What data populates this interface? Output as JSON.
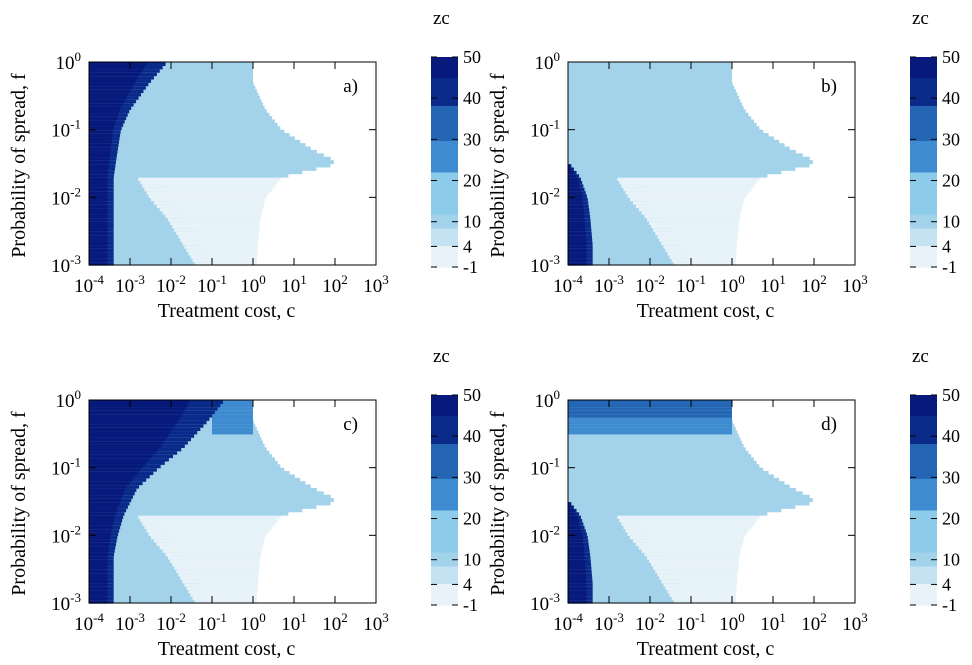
{
  "colors": {
    "very_light": "#e8f3f9",
    "light": "#c4e2f1",
    "medium_light": "#a2d3ea",
    "sky": "#8ccbe9",
    "mid_blue": "#3f8bd0",
    "blue": "#2566b4",
    "dark_blue": "#0a2a8a",
    "navy": "#07197a"
  },
  "chart_data": [
    {
      "type": "heatmap",
      "panel_label": "a)",
      "xlabel": "Treatment cost, c",
      "ylabel": "Probability of spread, f",
      "x_scale": "log",
      "y_scale": "log",
      "xlim": [
        0.0001,
        1000
      ],
      "ylim": [
        0.001,
        1
      ],
      "x_tick_values": [
        0.0001,
        0.001,
        0.01,
        0.1,
        1,
        10,
        100,
        1000
      ],
      "x_tick_labels": [
        [
          "10",
          "-4"
        ],
        [
          "10",
          "-3"
        ],
        [
          "10",
          "-2"
        ],
        [
          "10",
          "-1"
        ],
        [
          "10",
          "0"
        ],
        [
          "10",
          "1"
        ],
        [
          "10",
          "2"
        ],
        [
          "10",
          "3"
        ]
      ],
      "y_tick_values": [
        0.001,
        0.01,
        0.1,
        1
      ],
      "y_tick_labels": [
        [
          "10",
          "-3"
        ],
        [
          "10",
          "-2"
        ],
        [
          "10",
          "-1"
        ],
        [
          "10",
          "0"
        ]
      ],
      "colorbar": {
        "title": "zc",
        "ticks": [
          50,
          40,
          30,
          20,
          10,
          4,
          -1
        ]
      },
      "regions": [
        {
          "name": "feasible-region",
          "value": 10,
          "boundary_f": [
            0.001,
            0.002,
            0.005,
            0.01,
            0.02,
            0.03,
            0.035,
            0.05,
            0.1,
            0.2,
            0.5,
            0.8,
            1
          ],
          "boundary_c": [
            1.2,
            1.3,
            1.5,
            2,
            5,
            80,
            100,
            30,
            5,
            2,
            1,
            1,
            1
          ]
        },
        {
          "name": "low-zc-region",
          "value": 2,
          "boundary_f": [
            0.001,
            0.002,
            0.005,
            0.01,
            0.02
          ],
          "c_start": [
            0.04,
            0.02,
            0.008,
            0.003,
            0.0015
          ]
        },
        {
          "name": "high-zc-band",
          "value": 50,
          "boundary_f": [
            0.001,
            0.002,
            0.005,
            0.01,
            0.02,
            0.05,
            0.1,
            0.2,
            0.5,
            1
          ],
          "c_end": [
            0.0004,
            0.0004,
            0.0004,
            0.0004,
            0.0004,
            0.0005,
            0.0006,
            0.001,
            0.003,
            0.008
          ]
        }
      ]
    },
    {
      "type": "heatmap",
      "panel_label": "b)",
      "xlabel": "Treatment cost, c",
      "ylabel": "Probability of spread, f",
      "x_scale": "log",
      "y_scale": "log",
      "xlim": [
        0.0001,
        1000
      ],
      "ylim": [
        0.001,
        1
      ],
      "x_tick_values": [
        0.0001,
        0.001,
        0.01,
        0.1,
        1,
        10,
        100,
        1000
      ],
      "x_tick_labels": [
        [
          "10",
          "-4"
        ],
        [
          "10",
          "-3"
        ],
        [
          "10",
          "-2"
        ],
        [
          "10",
          "-1"
        ],
        [
          "10",
          "0"
        ],
        [
          "10",
          "1"
        ],
        [
          "10",
          "2"
        ],
        [
          "10",
          "3"
        ]
      ],
      "y_tick_values": [
        0.001,
        0.01,
        0.1,
        1
      ],
      "y_tick_labels": [
        [
          "10",
          "-3"
        ],
        [
          "10",
          "-2"
        ],
        [
          "10",
          "-1"
        ],
        [
          "10",
          "0"
        ]
      ],
      "colorbar": {
        "title": "zc",
        "ticks": [
          50,
          40,
          30,
          20,
          10,
          4,
          -1
        ]
      },
      "regions": [
        {
          "name": "feasible-region",
          "value": 10,
          "boundary_f": [
            0.001,
            0.002,
            0.005,
            0.01,
            0.02,
            0.03,
            0.035,
            0.05,
            0.1,
            0.2,
            0.5,
            0.8,
            1
          ],
          "boundary_c": [
            1.2,
            1.3,
            1.5,
            2,
            5,
            80,
            100,
            30,
            5,
            2,
            1,
            1,
            1
          ]
        },
        {
          "name": "low-zc-region",
          "value": 2,
          "boundary_f": [
            0.001,
            0.002,
            0.005,
            0.01,
            0.02
          ],
          "c_start": [
            0.04,
            0.02,
            0.008,
            0.003,
            0.0015
          ]
        },
        {
          "name": "high-zc-band",
          "value": 50,
          "boundary_f": [
            0.001,
            0.002,
            0.005,
            0.01,
            0.02,
            0.03
          ],
          "c_end": [
            0.0004,
            0.0004,
            0.00035,
            0.0003,
            0.0002,
            0.00012
          ]
        }
      ]
    },
    {
      "type": "heatmap",
      "panel_label": "c)",
      "xlabel": "Treatment cost, c",
      "ylabel": "Probability of spread, f",
      "x_scale": "log",
      "y_scale": "log",
      "xlim": [
        0.0001,
        1000
      ],
      "ylim": [
        0.001,
        1
      ],
      "x_tick_values": [
        0.0001,
        0.001,
        0.01,
        0.1,
        1,
        10,
        100,
        1000
      ],
      "x_tick_labels": [
        [
          "10",
          "-4"
        ],
        [
          "10",
          "-3"
        ],
        [
          "10",
          "-2"
        ],
        [
          "10",
          "-1"
        ],
        [
          "10",
          "0"
        ],
        [
          "10",
          "1"
        ],
        [
          "10",
          "2"
        ],
        [
          "10",
          "3"
        ]
      ],
      "y_tick_values": [
        0.001,
        0.01,
        0.1,
        1
      ],
      "y_tick_labels": [
        [
          "10",
          "-3"
        ],
        [
          "10",
          "-2"
        ],
        [
          "10",
          "-1"
        ],
        [
          "10",
          "0"
        ]
      ],
      "colorbar": {
        "title": "zc",
        "ticks": [
          50,
          40,
          30,
          20,
          10,
          4,
          -1
        ]
      },
      "regions": [
        {
          "name": "feasible-region",
          "value": 10,
          "boundary_f": [
            0.001,
            0.002,
            0.005,
            0.01,
            0.02,
            0.03,
            0.035,
            0.05,
            0.1,
            0.2,
            0.5,
            0.8,
            1
          ],
          "boundary_c": [
            1.2,
            1.3,
            1.5,
            2,
            5,
            80,
            100,
            30,
            5,
            2,
            1,
            1,
            1
          ]
        },
        {
          "name": "low-zc-region",
          "value": 2,
          "boundary_f": [
            0.001,
            0.002,
            0.005,
            0.01,
            0.02
          ],
          "c_start": [
            0.04,
            0.02,
            0.008,
            0.003,
            0.0015
          ]
        },
        {
          "name": "high-zc-band",
          "value": 50,
          "boundary_f": [
            0.001,
            0.002,
            0.005,
            0.01,
            0.02,
            0.05,
            0.1,
            0.2,
            0.5,
            1
          ],
          "c_end": [
            0.0004,
            0.0004,
            0.0004,
            0.0005,
            0.0007,
            0.0015,
            0.005,
            0.02,
            0.08,
            0.2
          ]
        },
        {
          "name": "mid-zc-strip",
          "value": 25,
          "f_range": [
            0.3,
            1
          ],
          "c_range": [
            0.1,
            1
          ]
        }
      ]
    },
    {
      "type": "heatmap",
      "panel_label": "d)",
      "xlabel": "Treatment cost, c",
      "ylabel": "Probability of spread, f",
      "x_scale": "log",
      "y_scale": "log",
      "xlim": [
        0.0001,
        1000
      ],
      "ylim": [
        0.001,
        1
      ],
      "x_tick_values": [
        0.0001,
        0.001,
        0.01,
        0.1,
        1,
        10,
        100,
        1000
      ],
      "x_tick_labels": [
        [
          "10",
          "-4"
        ],
        [
          "10",
          "-3"
        ],
        [
          "10",
          "-2"
        ],
        [
          "10",
          "-1"
        ],
        [
          "10",
          "0"
        ],
        [
          "10",
          "1"
        ],
        [
          "10",
          "2"
        ],
        [
          "10",
          "3"
        ]
      ],
      "y_tick_values": [
        0.001,
        0.01,
        0.1,
        1
      ],
      "y_tick_labels": [
        [
          "10",
          "-3"
        ],
        [
          "10",
          "-2"
        ],
        [
          "10",
          "-1"
        ],
        [
          "10",
          "0"
        ]
      ],
      "colorbar": {
        "title": "zc",
        "ticks": [
          50,
          40,
          30,
          20,
          10,
          4,
          -1
        ]
      },
      "regions": [
        {
          "name": "feasible-region",
          "value": 10,
          "boundary_f": [
            0.001,
            0.002,
            0.005,
            0.01,
            0.02,
            0.03,
            0.035,
            0.05,
            0.1,
            0.2,
            0.5,
            0.8,
            1
          ],
          "boundary_c": [
            1.2,
            1.3,
            1.5,
            2,
            5,
            80,
            100,
            30,
            5,
            2,
            1,
            1,
            1
          ]
        },
        {
          "name": "low-zc-region",
          "value": 2,
          "boundary_f": [
            0.001,
            0.002,
            0.005,
            0.01,
            0.02
          ],
          "c_start": [
            0.04,
            0.02,
            0.008,
            0.003,
            0.0015
          ]
        },
        {
          "name": "high-zc-band",
          "value": 50,
          "boundary_f": [
            0.001,
            0.002,
            0.005,
            0.01,
            0.02,
            0.03
          ],
          "c_end": [
            0.0004,
            0.0004,
            0.00035,
            0.0003,
            0.0002,
            0.00012
          ]
        },
        {
          "name": "top-band-dark",
          "value": 35,
          "f_range": [
            0.55,
            1
          ],
          "c_range": [
            0.0001,
            1
          ]
        },
        {
          "name": "top-band-mid",
          "value": 28,
          "f_range": [
            0.3,
            0.55
          ],
          "c_range": [
            0.0001,
            1
          ]
        }
      ]
    }
  ]
}
